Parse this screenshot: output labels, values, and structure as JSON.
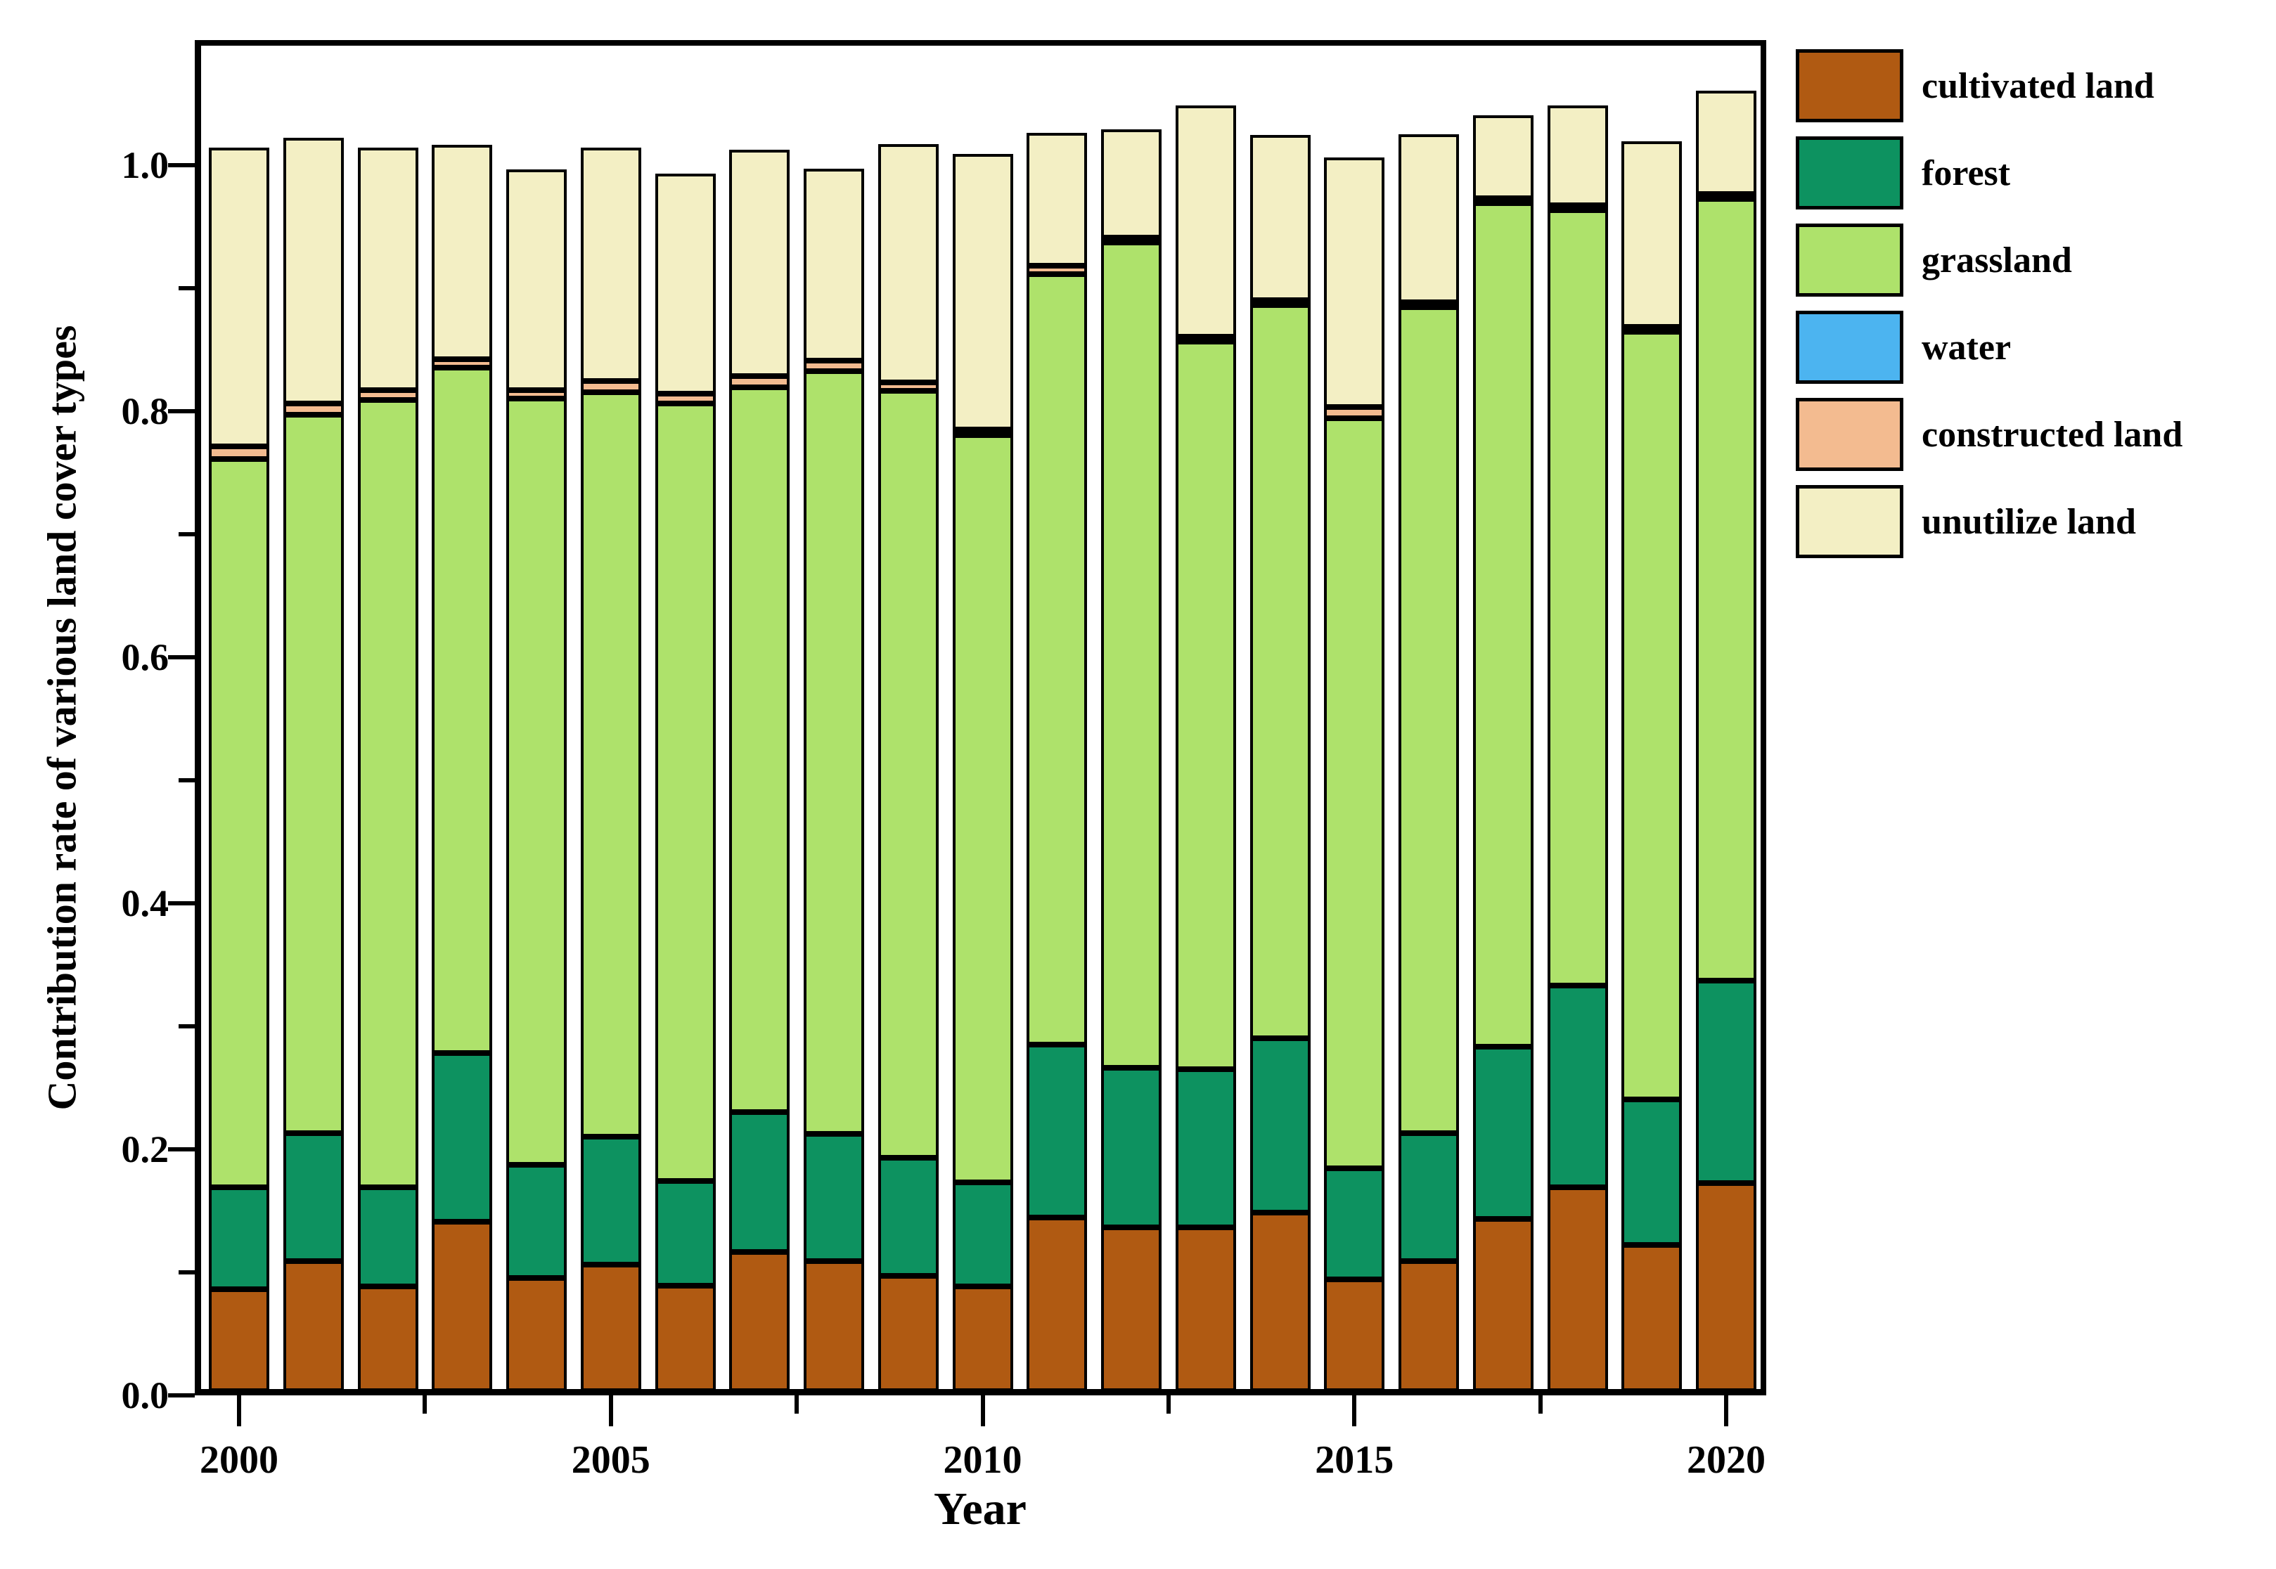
{
  "axes": {
    "y_title": "Contribution rate of various land cover types",
    "x_title": "Year",
    "y_major_ticks": [
      {
        "value": 0.0,
        "label": "0.0"
      },
      {
        "value": 0.2,
        "label": "0.2"
      },
      {
        "value": 0.4,
        "label": "0.4"
      },
      {
        "value": 0.6,
        "label": "0.6"
      },
      {
        "value": 0.8,
        "label": "0.8"
      },
      {
        "value": 1.0,
        "label": "1.0"
      }
    ],
    "y_minor_ticks": [
      0.1,
      0.3,
      0.5,
      0.7,
      0.9
    ],
    "x_major_ticks": [
      {
        "year": 2000,
        "label": "2000"
      },
      {
        "year": 2005,
        "label": "2005"
      },
      {
        "year": 2010,
        "label": "2010"
      },
      {
        "year": 2015,
        "label": "2015"
      },
      {
        "year": 2020,
        "label": "2020"
      }
    ],
    "x_minor_ticks": [
      2002.5,
      2007.5,
      2012.5,
      2017.5
    ],
    "ylim": [
      0,
      1.1
    ]
  },
  "chart_data": {
    "type": "bar",
    "stacked": true,
    "grid": false,
    "legend_position": "upper-right-outside",
    "title": "",
    "xlabel": "Year",
    "ylabel": "Contribution rate of various land cover types",
    "categories": [
      2000,
      2001,
      2002,
      2003,
      2004,
      2005,
      2006,
      2007,
      2008,
      2009,
      2010,
      2011,
      2012,
      2013,
      2014,
      2015,
      2016,
      2017,
      2018,
      2019,
      2020
    ],
    "series": [
      {
        "name": "cultivated land",
        "color": "#b05a12",
        "values": [
          0.083,
          0.106,
          0.085,
          0.138,
          0.092,
          0.103,
          0.086,
          0.113,
          0.106,
          0.094,
          0.085,
          0.141,
          0.133,
          0.133,
          0.145,
          0.091,
          0.106,
          0.14,
          0.166,
          0.119,
          0.169
        ]
      },
      {
        "name": "forest",
        "color": "#0d9260",
        "values": [
          0.083,
          0.104,
          0.081,
          0.137,
          0.092,
          0.104,
          0.085,
          0.114,
          0.103,
          0.096,
          0.085,
          0.141,
          0.13,
          0.129,
          0.142,
          0.09,
          0.104,
          0.14,
          0.164,
          0.118,
          0.165
        ]
      },
      {
        "name": "grassland",
        "color": "#aee26b",
        "values": [
          0.592,
          0.584,
          0.64,
          0.557,
          0.623,
          0.605,
          0.632,
          0.589,
          0.62,
          0.623,
          0.607,
          0.626,
          0.671,
          0.591,
          0.596,
          0.61,
          0.671,
          0.686,
          0.63,
          0.624,
          0.635
        ]
      },
      {
        "name": "water",
        "color": "#4cb4f0",
        "values": [
          0,
          0,
          0,
          0,
          0,
          0,
          0,
          0,
          0,
          0,
          0,
          0,
          0,
          0,
          0,
          0,
          0,
          0,
          0,
          0,
          0
        ]
      },
      {
        "name": "constructed land",
        "color": "#f3bb90",
        "values": [
          0.01,
          0.009,
          0.008,
          0.007,
          0.007,
          0.009,
          0.008,
          0.009,
          0.009,
          0.007,
          0.005,
          0.007,
          0.004,
          0.004,
          0.004,
          0.009,
          0.004,
          0.004,
          0.004,
          0.004,
          0.004
        ]
      },
      {
        "name": "unutilize land",
        "color": "#f3efc4",
        "values": [
          0.243,
          0.216,
          0.197,
          0.174,
          0.179,
          0.19,
          0.179,
          0.184,
          0.156,
          0.194,
          0.224,
          0.108,
          0.088,
          0.188,
          0.134,
          0.203,
          0.137,
          0.067,
          0.081,
          0.151,
          0.084
        ]
      }
    ],
    "totals": [
      1.011,
      1.019,
      1.011,
      1.013,
      0.993,
      1.011,
      0.99,
      1.009,
      0.994,
      1.014,
      1.006,
      1.023,
      1.026,
      1.045,
      1.021,
      1.003,
      1.022,
      1.037,
      1.045,
      1.016,
      1.057
    ]
  },
  "legend": {
    "entries": [
      "cultivated land",
      "forest",
      "grassland",
      "water",
      "constructed land",
      "unutilize land"
    ]
  }
}
